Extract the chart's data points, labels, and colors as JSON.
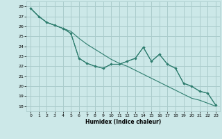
{
  "xlabel": "Humidex (Indice chaleur)",
  "xlim": [
    -0.5,
    23.5
  ],
  "ylim": [
    17.5,
    28.5
  ],
  "yticks": [
    18,
    19,
    20,
    21,
    22,
    23,
    24,
    25,
    26,
    27,
    28
  ],
  "xticks": [
    0,
    1,
    2,
    3,
    4,
    5,
    6,
    7,
    8,
    9,
    10,
    11,
    12,
    13,
    14,
    15,
    16,
    17,
    18,
    19,
    20,
    21,
    22,
    23
  ],
  "bg_color": "#cce8e8",
  "grid_color": "#aacccc",
  "line_color": "#2e7d6e",
  "line1_x": [
    0,
    1,
    2,
    3,
    4,
    5,
    6,
    7,
    8,
    9,
    10,
    11,
    12,
    13,
    14,
    15,
    16,
    17,
    18,
    19,
    20,
    21,
    22,
    23
  ],
  "line1_y": [
    27.8,
    27.0,
    26.4,
    26.1,
    25.8,
    25.5,
    24.8,
    24.2,
    23.7,
    23.2,
    22.7,
    22.3,
    22.0,
    21.6,
    21.2,
    20.8,
    20.4,
    20.0,
    19.6,
    19.2,
    18.8,
    18.6,
    18.3,
    18.0
  ],
  "line2_x": [
    0,
    1,
    2,
    3,
    4,
    5,
    6,
    7,
    8,
    9,
    10,
    11,
    12,
    13,
    14,
    15,
    16,
    17,
    18,
    19,
    20,
    21,
    22,
    23
  ],
  "line2_y": [
    27.8,
    27.0,
    26.4,
    26.1,
    25.8,
    25.3,
    22.8,
    22.3,
    22.0,
    21.8,
    22.2,
    22.2,
    22.5,
    22.8,
    23.9,
    22.5,
    23.2,
    22.2,
    21.8,
    20.3,
    20.0,
    19.5,
    19.3,
    18.1
  ],
  "line3_x": [
    0,
    1,
    2,
    3,
    4,
    5,
    6,
    7,
    8,
    9,
    10,
    11,
    12,
    13,
    14,
    15,
    16,
    17,
    18,
    19,
    20,
    21,
    22,
    23
  ],
  "line3_y": [
    27.8,
    27.0,
    26.4,
    26.1,
    25.8,
    25.3,
    22.8,
    22.3,
    22.0,
    21.8,
    22.2,
    22.2,
    22.5,
    22.8,
    23.9,
    22.5,
    23.2,
    22.2,
    21.8,
    20.3,
    20.0,
    19.5,
    19.3,
    18.1
  ]
}
